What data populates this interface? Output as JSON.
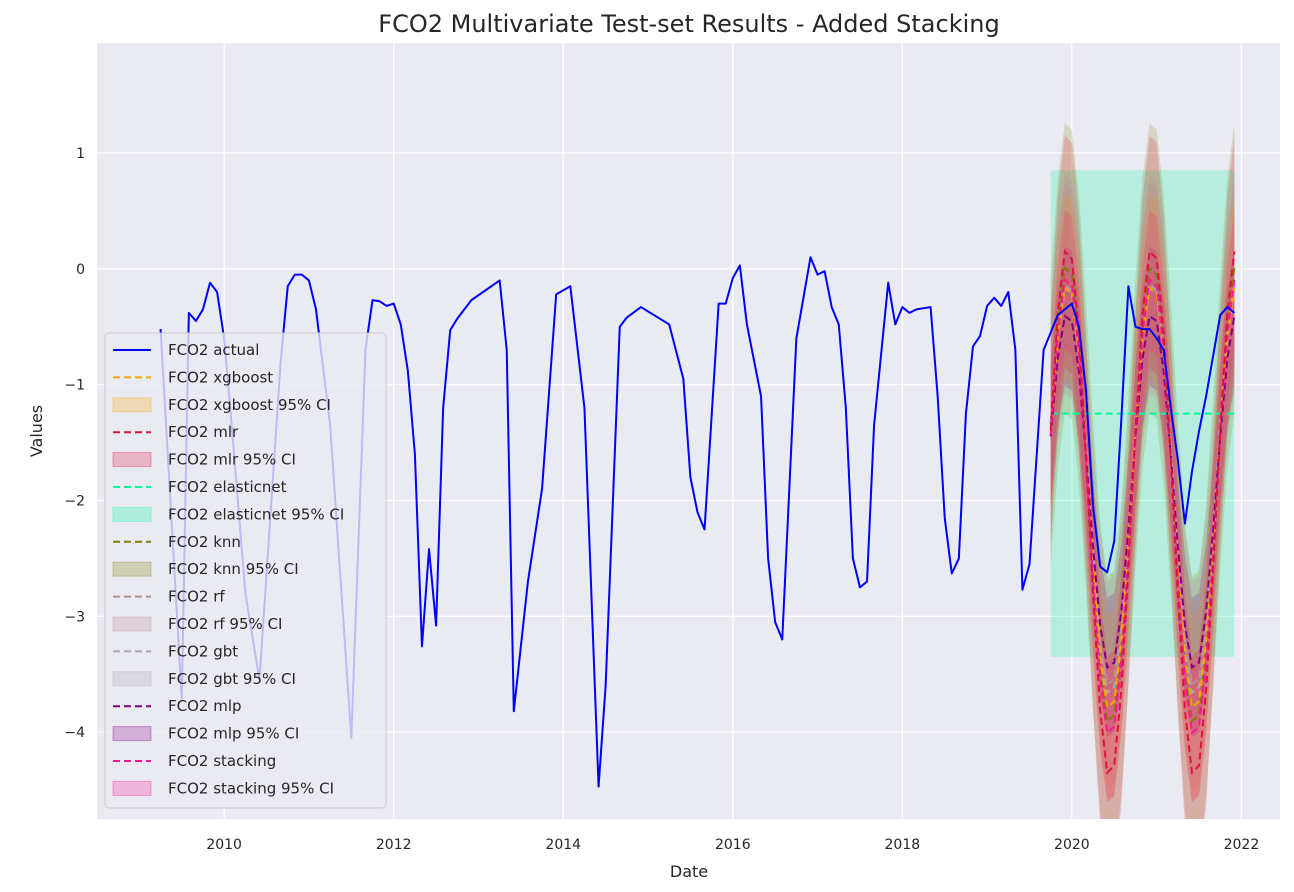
{
  "chart_data": {
    "type": "line",
    "title": "FCO2 Multivariate Test-set Results - Added Stacking",
    "xlabel": "Date",
    "ylabel": "Values",
    "xlim": [
      "2008-07-01",
      "2022-06-15"
    ],
    "ylim": [
      -4.75,
      1.95
    ],
    "x_ticks": [
      "2010",
      "2012",
      "2014",
      "2016",
      "2018",
      "2020",
      "2022"
    ],
    "y_ticks": [
      "1",
      "0",
      "−1",
      "−2",
      "−3",
      "−4"
    ],
    "grid": true,
    "legend_placement": "center-left",
    "colors": {
      "background": "#eaeaf2",
      "grid": "#ffffff",
      "actual": "#0000ff",
      "xgboost": "#ffa500",
      "mlr": "#dc143c",
      "elasticnet": "#00fa9a",
      "knn": "#808000",
      "rf": "#bc8f8f",
      "gbt": "#a9a9a9",
      "mlp": "#800080",
      "stacking": "#ff1493"
    },
    "legend": [
      {
        "label": "FCO2 actual",
        "kind": "line",
        "color": "#0000ff"
      },
      {
        "label": "FCO2 xgboost",
        "kind": "dash",
        "color": "#ffa500"
      },
      {
        "label": "FCO2 xgboost 95% CI",
        "kind": "patch",
        "color": "#ffa500"
      },
      {
        "label": "FCO2 mlr",
        "kind": "dash",
        "color": "#dc143c"
      },
      {
        "label": "FCO2 mlr 95% CI",
        "kind": "patch",
        "color": "#dc143c"
      },
      {
        "label": "FCO2 elasticnet",
        "kind": "dash",
        "color": "#00fa9a"
      },
      {
        "label": "FCO2 elasticnet 95% CI",
        "kind": "patch",
        "color": "#00fa9a"
      },
      {
        "label": "FCO2 knn",
        "kind": "dash",
        "color": "#808000"
      },
      {
        "label": "FCO2 knn 95% CI",
        "kind": "patch",
        "color": "#808000"
      },
      {
        "label": "FCO2 rf",
        "kind": "dash",
        "color": "#bc8f8f"
      },
      {
        "label": "FCO2 rf 95% CI",
        "kind": "patch",
        "color": "#bc8f8f"
      },
      {
        "label": "FCO2 gbt",
        "kind": "dash",
        "color": "#a9a9a9"
      },
      {
        "label": "FCO2 gbt 95% CI",
        "kind": "patch",
        "color": "#a9a9a9"
      },
      {
        "label": "FCO2 mlp",
        "kind": "dash",
        "color": "#800080"
      },
      {
        "label": "FCO2 mlp 95% CI",
        "kind": "patch",
        "color": "#800080"
      },
      {
        "label": "FCO2 stacking",
        "kind": "dash",
        "color": "#ff1493"
      },
      {
        "label": "FCO2 stacking 95% CI",
        "kind": "patch",
        "color": "#ff1493"
      }
    ],
    "actual": {
      "x": [
        "2009-04",
        "2009-07",
        "2009-08",
        "2009-09",
        "2009-10",
        "2009-11",
        "2009-12",
        "2010-01",
        "2010-02",
        "2010-04",
        "2010-06",
        "2010-09",
        "2010-10",
        "2010-11",
        "2010-12",
        "2011-01",
        "2011-02",
        "2011-04",
        "2011-07",
        "2011-09",
        "2011-10",
        "2011-11",
        "2011-12",
        "2012-01",
        "2012-02",
        "2012-03",
        "2012-04",
        "2012-05",
        "2012-06",
        "2012-07",
        "2012-08",
        "2012-09",
        "2012-10",
        "2012-12",
        "2013-04",
        "2013-05",
        "2013-06",
        "2013-08",
        "2013-10",
        "2013-12",
        "2014-02",
        "2014-04",
        "2014-06",
        "2014-07",
        "2014-09",
        "2014-10",
        "2014-12",
        "2015-04",
        "2015-06",
        "2015-07",
        "2015-08",
        "2015-09",
        "2015-11",
        "2015-12",
        "2016-01",
        "2016-02",
        "2016-03",
        "2016-05",
        "2016-06",
        "2016-07",
        "2016-08",
        "2016-10",
        "2016-11",
        "2016-12",
        "2017-01",
        "2017-02",
        "2017-03",
        "2017-04",
        "2017-05",
        "2017-06",
        "2017-07",
        "2017-08",
        "2017-09",
        "2017-11",
        "2017-12",
        "2018-01",
        "2018-02",
        "2018-03",
        "2018-05",
        "2018-06",
        "2018-07",
        "2018-08",
        "2018-09",
        "2018-10",
        "2018-11",
        "2018-12",
        "2019-01",
        "2019-02",
        "2019-03",
        "2019-04",
        "2019-05",
        "2019-06",
        "2019-07",
        "2019-09",
        "2019-10",
        "2019-11",
        "2019-12",
        "2020-01",
        "2020-02",
        "2020-03",
        "2020-04",
        "2020-05",
        "2020-06",
        "2020-07",
        "2020-08",
        "2020-09",
        "2020-10",
        "2020-11",
        "2020-12",
        "2021-01",
        "2021-02",
        "2021-03",
        "2021-04",
        "2021-05",
        "2021-06",
        "2021-07",
        "2021-08",
        "2021-09",
        "2021-10",
        "2021-11",
        "2021-12"
      ],
      "y": [
        -0.52,
        -3.72,
        -0.38,
        -0.45,
        -0.35,
        -0.12,
        -0.2,
        -0.6,
        -1.3,
        -2.8,
        -3.55,
        -0.8,
        -0.15,
        -0.05,
        -0.05,
        -0.1,
        -0.35,
        -1.35,
        -4.05,
        -0.7,
        -0.27,
        -0.28,
        -0.32,
        -0.3,
        -0.48,
        -0.88,
        -1.6,
        -3.26,
        -2.42,
        -3.08,
        -1.2,
        -0.53,
        -0.43,
        -0.27,
        -0.1,
        -0.7,
        -3.82,
        -2.7,
        -1.9,
        -0.22,
        -0.15,
        -1.2,
        -4.47,
        -3.6,
        -0.5,
        -0.42,
        -0.33,
        -0.48,
        -0.95,
        -1.8,
        -2.1,
        -2.25,
        -0.3,
        -0.3,
        -0.08,
        0.03,
        -0.48,
        -1.1,
        -2.5,
        -3.05,
        -3.2,
        -0.6,
        -0.25,
        0.1,
        -0.05,
        -0.02,
        -0.33,
        -0.48,
        -1.2,
        -2.5,
        -2.75,
        -2.7,
        -1.35,
        -0.12,
        -0.48,
        -0.33,
        -0.38,
        -0.35,
        -0.33,
        -1.1,
        -2.15,
        -2.63,
        -2.5,
        -1.25,
        -0.67,
        -0.58,
        -0.32,
        -0.25,
        -0.32,
        -0.2,
        -0.7,
        -2.77,
        -2.55,
        -0.7,
        -0.55,
        -0.4,
        -0.35,
        -0.3,
        -0.5,
        -1.05,
        -2.05,
        -2.57,
        -2.62,
        -2.35,
        -1.3,
        -0.15,
        -0.5,
        -0.52,
        -0.52,
        -0.6,
        -0.7,
        -1.2,
        -1.65,
        -2.2,
        -1.75,
        -1.4,
        -1.1,
        -0.75,
        -0.4,
        -0.33,
        -0.38
      ]
    }
  }
}
